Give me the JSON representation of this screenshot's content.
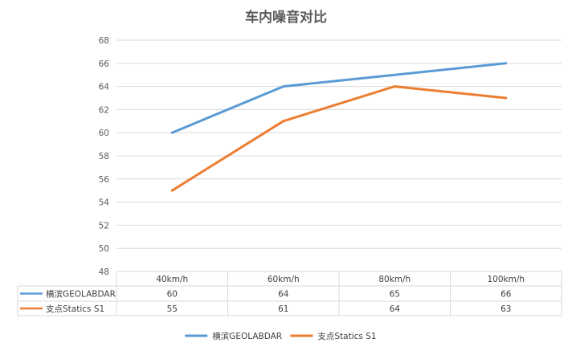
{
  "chart_data": {
    "type": "line",
    "title": "车内噪音对比",
    "categories": [
      "40km/h",
      "60km/h",
      "80km/h",
      "100km/h"
    ],
    "series": [
      {
        "name": "横滨GEOLABDAR",
        "values": [
          60,
          64,
          65,
          66
        ],
        "color": "#5b9bd5"
      },
      {
        "name": "支点Statics S1",
        "values": [
          55,
          61,
          64,
          63
        ],
        "color": "#ed7d31"
      }
    ],
    "ylim": [
      48,
      68
    ],
    "ytick_step": 2,
    "yticks": [
      "48",
      "50",
      "52",
      "54",
      "56",
      "58",
      "60",
      "62",
      "64",
      "66",
      "68"
    ],
    "grid": true,
    "legend_position": "bottom",
    "data_table": true
  }
}
